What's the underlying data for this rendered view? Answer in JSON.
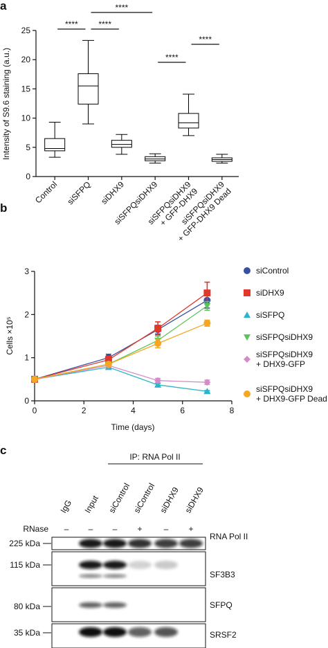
{
  "panel_labels": [
    "a",
    "b",
    "c"
  ],
  "chart_data": [
    {
      "type": "box",
      "ylabel": "Intensity of S9.6 staining (a.u.)",
      "categories": [
        "Control",
        "siSFPQ",
        "siDHX9",
        "siSFPQsiDHX9",
        "siSFPQsiDHX9\n+ GFP-DHX9",
        "siSFPQsiDHX9\n+ GFP-DHX9 Dead"
      ],
      "stats": {
        "min": [
          3.3,
          9.0,
          3.8,
          2.3,
          7.0,
          2.3
        ],
        "q1": [
          4.4,
          12.4,
          5.0,
          2.7,
          8.3,
          2.6
        ],
        "median": [
          4.8,
          15.5,
          5.5,
          3.0,
          9.2,
          2.9
        ],
        "q3": [
          6.5,
          17.6,
          6.2,
          3.4,
          10.8,
          3.2
        ],
        "max": [
          9.3,
          23.3,
          7.2,
          3.9,
          14.1,
          3.8
        ]
      },
      "color": "#000000",
      "ylim": [
        0,
        25
      ],
      "yticks": [
        0,
        5,
        10,
        15,
        20,
        25
      ],
      "comparisons": [
        {
          "pair": [
            0,
            1
          ],
          "label": "****"
        },
        {
          "pair": [
            1,
            3
          ],
          "label": "****"
        },
        {
          "pair": [
            1,
            2
          ],
          "label": "****"
        },
        {
          "pair": [
            3,
            4
          ],
          "label": "****"
        },
        {
          "pair": [
            4,
            5
          ],
          "label": "****"
        }
      ]
    },
    {
      "type": "line",
      "xlabel": "Time (days)",
      "ylabel": "Cells ×10⁵",
      "x": [
        0,
        3,
        5,
        7
      ],
      "xlim": [
        0,
        8
      ],
      "xticks": [
        0,
        2,
        4,
        6,
        8
      ],
      "ylim": [
        0,
        3
      ],
      "yticks": [
        0,
        1,
        2,
        3
      ],
      "series": [
        {
          "name": "siControl",
          "color": "#3a4fa0",
          "marker": "circle",
          "values": [
            0.5,
            1.0,
            1.65,
            2.33
          ],
          "errors": [
            0,
            0.08,
            0.1,
            0.18
          ]
        },
        {
          "name": "siDHX9",
          "color": "#e0382b",
          "marker": "square",
          "values": [
            0.5,
            0.95,
            1.68,
            2.5
          ],
          "errors": [
            0,
            0.08,
            0.15,
            0.25
          ]
        },
        {
          "name": "siSFPQ",
          "color": "#2ab5c8",
          "marker": "triangle-up",
          "values": [
            0.5,
            0.78,
            0.37,
            0.22
          ],
          "errors": [
            0,
            0.04,
            0.03,
            0.02
          ]
        },
        {
          "name": "siSFPQsiDHX9",
          "color": "#5ec45a",
          "marker": "triangle-down",
          "values": [
            0.5,
            0.85,
            1.4,
            2.2
          ],
          "errors": [
            0,
            0.05,
            0.1,
            0.1
          ]
        },
        {
          "name": "siSFPQsiDHX9\n+ DHX9-GFP",
          "color": "#d58bc8",
          "marker": "diamond",
          "values": [
            0.5,
            0.82,
            0.47,
            0.43
          ],
          "errors": [
            0,
            0.04,
            0.05,
            0.05
          ]
        },
        {
          "name": "siSFPQsiDHX9\n+ DHX9-GFP Dead",
          "color": "#f5a623",
          "marker": "circle",
          "values": [
            0.5,
            0.85,
            1.33,
            1.8
          ],
          "errors": [
            0,
            0.05,
            0.1,
            0.07
          ]
        }
      ]
    }
  ],
  "blot": {
    "ip_label": "IP: RNA Pol II",
    "lanes": [
      "IgG",
      "Input",
      "siControl",
      "siControl",
      "siDHX9",
      "siDHX9"
    ],
    "treatment_label": "RNase",
    "treatment": [
      "–",
      "–",
      "–",
      "+",
      "–",
      "+"
    ],
    "rows": [
      {
        "marker": "225 kDa",
        "label": "RNA Pol II"
      },
      {
        "marker": "115 kDa",
        "label": "SF3B3"
      },
      {
        "marker": "80 kDa",
        "label": "SFPQ"
      },
      {
        "marker": "35 kDa",
        "label": "SRSF2"
      }
    ]
  }
}
